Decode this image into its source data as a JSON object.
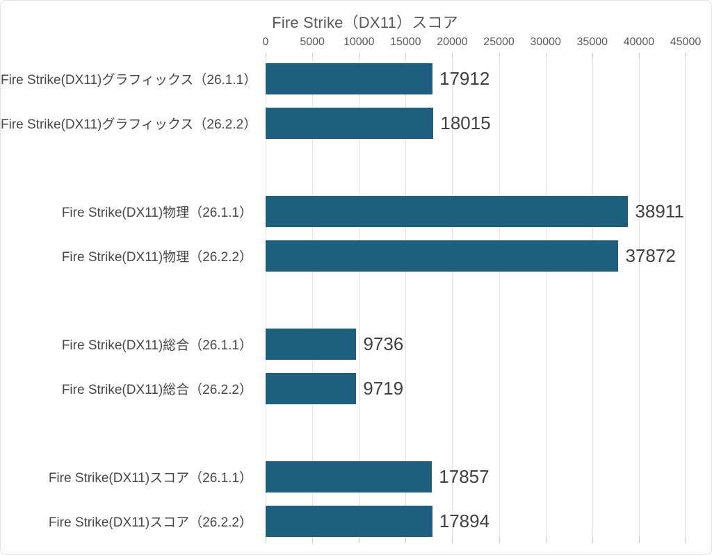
{
  "page": {
    "background": "#ffffff",
    "border_color": "#e2e2e2"
  },
  "chart_data": {
    "type": "bar",
    "orientation": "horizontal",
    "title": "Fire Strike（DX11）スコア",
    "bar_color": "#1E5F80",
    "gridline_color": "#e2e2e2",
    "text_color": "#595959",
    "label_color": "#404040",
    "grid": true,
    "legend": false,
    "group_size": 2,
    "value_axis": {
      "position": "top",
      "min": 0,
      "max": 45000,
      "step": 5000,
      "tick_labels": [
        "0",
        "5000",
        "10000",
        "15000",
        "20000",
        "25000",
        "30000",
        "35000",
        "40000",
        "45000"
      ]
    },
    "categories": [
      "Fire Strike(DX11)グラフィックス（26.1.1）",
      "Fire Strike(DX11)グラフィックス（26.2.2）",
      "Fire Strike(DX11)物理（26.1.1）",
      "Fire Strike(DX11)物理（26.2.2）",
      "Fire Strike(DX11)総合（26.1.1）",
      "Fire Strike(DX11)総合（26.2.2）",
      "Fire Strike(DX11)スコア（26.1.1）",
      "Fire Strike(DX11)スコア（26.2.2）"
    ],
    "values": [
      17912,
      18015,
      38911,
      37872,
      9736,
      9719,
      17857,
      17894
    ],
    "data_labels": [
      "17912",
      "18015",
      "38911",
      "37872",
      "9736",
      "9719",
      "17857",
      "17894"
    ]
  }
}
